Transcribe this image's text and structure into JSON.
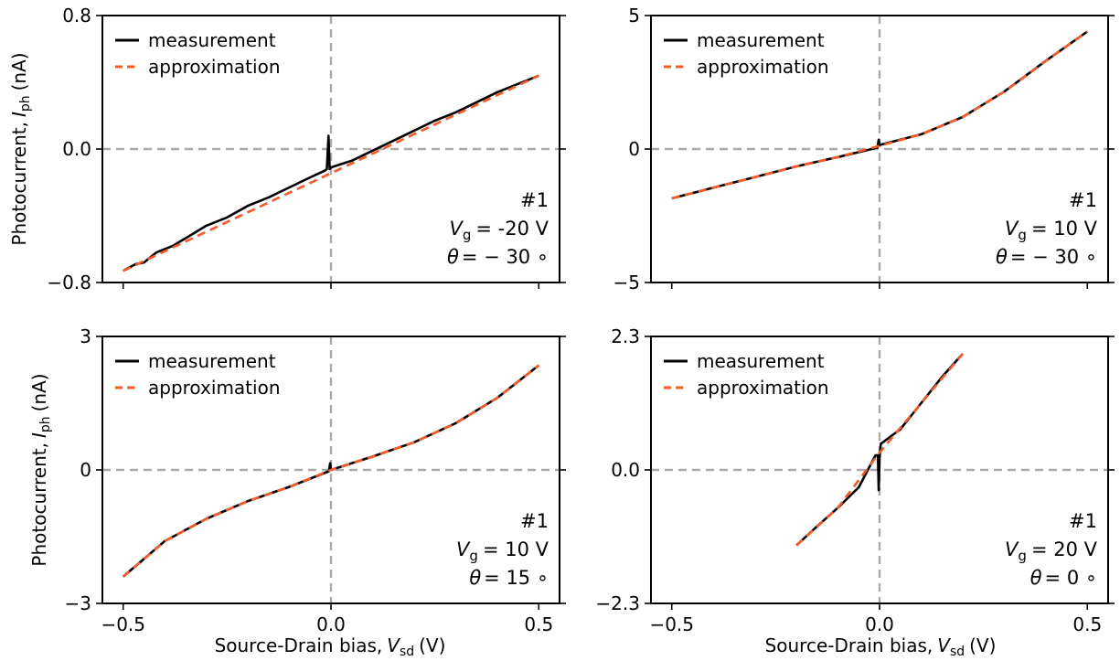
{
  "figure": {
    "ylabel_prefix": "Photocurrent,",
    "ylabel_var": "I",
    "ylabel_sub": "ph",
    "ylabel_unit": "(nA)",
    "xlabel_prefix": "Source-Drain bias,",
    "xlabel_var": "V",
    "xlabel_sub": "sd",
    "xlabel_unit": "(V)"
  },
  "legend": {
    "measurement": "measurement",
    "approximation": "approximation"
  },
  "colors": {
    "measurement": "#000000",
    "approximation": "#ff5722",
    "reference": "#aaaaaa"
  },
  "chart_data": [
    {
      "type": "line",
      "xlim": [
        -0.55,
        0.55
      ],
      "ylim": [
        -0.8,
        0.8
      ],
      "xticks": [
        -0.5,
        0.0,
        0.5
      ],
      "xtick_labels": [
        "",
        "",
        ""
      ],
      "yticks": [
        -0.8,
        0.0,
        0.8
      ],
      "ytick_labels": [
        "−0.8",
        "0.0",
        "0.8"
      ],
      "legend_position": "top-left",
      "annotation": {
        "sample": "#1",
        "vg_value": "= -20 V",
        "theta_text": "= − 30 ∘"
      },
      "series": [
        {
          "name": "measurement",
          "x": [
            -0.5,
            -0.47,
            -0.45,
            -0.42,
            -0.38,
            -0.34,
            -0.3,
            -0.25,
            -0.2,
            -0.15,
            -0.1,
            -0.05,
            -0.015,
            -0.01,
            -0.006,
            -0.003,
            0.0,
            0.05,
            0.1,
            0.15,
            0.2,
            0.25,
            0.3,
            0.35,
            0.4,
            0.42,
            0.45,
            0.48,
            0.5
          ],
          "y": [
            -0.73,
            -0.69,
            -0.68,
            -0.62,
            -0.58,
            -0.52,
            -0.46,
            -0.41,
            -0.34,
            -0.29,
            -0.23,
            -0.17,
            -0.13,
            -0.12,
            0.08,
            -0.12,
            -0.11,
            -0.07,
            -0.01,
            0.05,
            0.11,
            0.17,
            0.22,
            0.28,
            0.34,
            0.36,
            0.39,
            0.42,
            0.44
          ]
        },
        {
          "name": "approximation",
          "x": [
            -0.5,
            0.5
          ],
          "y": [
            -0.73,
            0.44
          ]
        }
      ]
    },
    {
      "type": "line",
      "xlim": [
        -0.55,
        0.55
      ],
      "ylim": [
        -5,
        5
      ],
      "xticks": [
        -0.5,
        0.0,
        0.5
      ],
      "xtick_labels": [
        "",
        "",
        ""
      ],
      "yticks": [
        -5,
        0,
        5
      ],
      "ytick_labels": [
        "−5",
        "0",
        "5"
      ],
      "legend_position": "top-left",
      "annotation": {
        "sample": "#1",
        "vg_value": "= 10 V",
        "theta_text": "= − 30 ∘"
      },
      "series": [
        {
          "name": "measurement",
          "x": [
            -0.5,
            -0.4,
            -0.3,
            -0.2,
            -0.1,
            -0.005,
            -0.002,
            0.0,
            0.1,
            0.2,
            0.3,
            0.4,
            0.5
          ],
          "y": [
            -1.85,
            -1.45,
            -1.05,
            -0.65,
            -0.3,
            0.05,
            0.35,
            0.15,
            0.55,
            1.2,
            2.15,
            3.3,
            4.4
          ]
        },
        {
          "name": "approximation",
          "x": [
            -0.5,
            -0.4,
            -0.3,
            -0.2,
            -0.1,
            0.0,
            0.1,
            0.2,
            0.3,
            0.4,
            0.5
          ],
          "y": [
            -1.85,
            -1.45,
            -1.05,
            -0.65,
            -0.3,
            0.12,
            0.55,
            1.2,
            2.15,
            3.3,
            4.4
          ]
        }
      ]
    },
    {
      "type": "line",
      "xlim": [
        -0.55,
        0.55
      ],
      "ylim": [
        -3,
        3
      ],
      "xticks": [
        -0.5,
        0.0,
        0.5
      ],
      "xtick_labels": [
        "−0.5",
        "0.0",
        "0.5"
      ],
      "yticks": [
        -3,
        0,
        3
      ],
      "ytick_labels": [
        "−3",
        "0",
        "3"
      ],
      "legend_position": "top-left",
      "annotation": {
        "sample": "#1",
        "vg_value": "= 10 V",
        "theta_text": "= 15 ∘"
      },
      "series": [
        {
          "name": "measurement",
          "x": [
            -0.5,
            -0.4,
            -0.3,
            -0.2,
            -0.1,
            -0.005,
            -0.002,
            0.0,
            0.1,
            0.2,
            0.3,
            0.4,
            0.5
          ],
          "y": [
            -2.4,
            -1.6,
            -1.1,
            -0.7,
            -0.38,
            -0.03,
            0.15,
            0.0,
            0.3,
            0.62,
            1.05,
            1.62,
            2.35
          ]
        },
        {
          "name": "approximation",
          "x": [
            -0.5,
            -0.4,
            -0.3,
            -0.2,
            -0.1,
            0.0,
            0.1,
            0.2,
            0.3,
            0.4,
            0.5
          ],
          "y": [
            -2.4,
            -1.6,
            -1.1,
            -0.7,
            -0.38,
            0.0,
            0.3,
            0.62,
            1.05,
            1.62,
            2.35
          ]
        }
      ]
    },
    {
      "type": "line",
      "xlim": [
        -0.55,
        0.55
      ],
      "ylim": [
        -2.3,
        2.3
      ],
      "xticks": [
        -0.5,
        0.0,
        0.5
      ],
      "xtick_labels": [
        "−0.5",
        "0.0",
        "0.5"
      ],
      "yticks": [
        -2.3,
        0.0,
        2.3
      ],
      "ytick_labels": [
        "−2.3",
        "0.0",
        "2.3"
      ],
      "legend_position": "top-left",
      "annotation": {
        "sample": "#1",
        "vg_value": "= 20 V",
        "theta_text": "= 0 ∘"
      },
      "series": [
        {
          "name": "measurement",
          "x": [
            -0.2,
            -0.15,
            -0.1,
            -0.05,
            -0.01,
            -0.004,
            -0.002,
            0.0,
            0.003,
            0.05,
            0.1,
            0.15,
            0.2
          ],
          "y": [
            -1.3,
            -0.97,
            -0.65,
            -0.3,
            0.25,
            0.25,
            -0.35,
            0.2,
            0.45,
            0.7,
            1.15,
            1.6,
            2.0
          ]
        },
        {
          "name": "approximation",
          "x": [
            -0.2,
            -0.1,
            0.0,
            0.1,
            0.2
          ],
          "y": [
            -1.3,
            -0.65,
            0.3,
            1.15,
            2.0
          ]
        }
      ]
    }
  ]
}
